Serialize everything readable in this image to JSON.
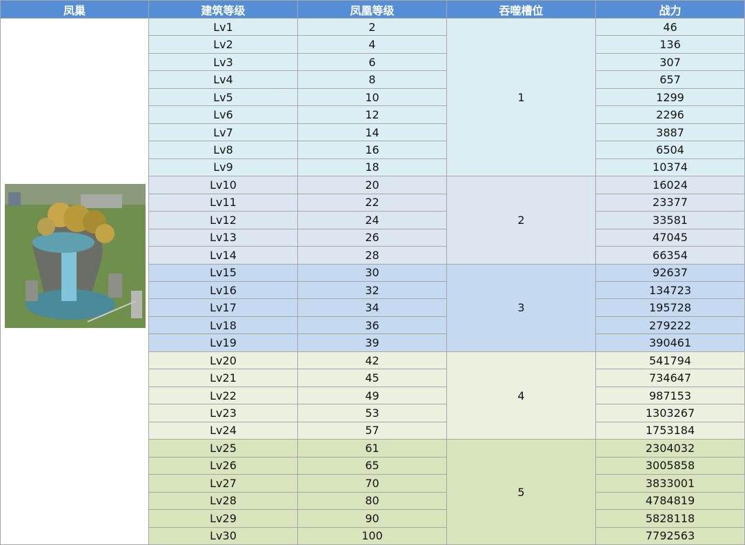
{
  "header": [
    "凤巢",
    "建筑等级",
    "凤凰等级",
    "吞噬槽位",
    "战力"
  ],
  "groups": [
    {
      "slot": 1,
      "color": "#daeef3",
      "rows": [
        {
          "level": "Lv1",
          "phoenix": 2,
          "power": 46
        },
        {
          "level": "Lv2",
          "phoenix": 4,
          "power": 136
        },
        {
          "level": "Lv3",
          "phoenix": 6,
          "power": 307
        },
        {
          "level": "Lv4",
          "phoenix": 8,
          "power": 657
        },
        {
          "level": "Lv5",
          "phoenix": 10,
          "power": 1299
        },
        {
          "level": "Lv6",
          "phoenix": 12,
          "power": 2296
        },
        {
          "level": "Lv7",
          "phoenix": 14,
          "power": 3887
        },
        {
          "level": "Lv8",
          "phoenix": 16,
          "power": 6504
        },
        {
          "level": "Lv9",
          "phoenix": 18,
          "power": 10374
        }
      ]
    },
    {
      "slot": 2,
      "color": "#dce6f1",
      "rows": [
        {
          "level": "Lv10",
          "phoenix": 20,
          "power": 16024
        },
        {
          "level": "Lv11",
          "phoenix": 22,
          "power": 23377
        },
        {
          "level": "Lv12",
          "phoenix": 24,
          "power": 33581
        },
        {
          "level": "Lv13",
          "phoenix": 26,
          "power": 47045
        },
        {
          "level": "Lv14",
          "phoenix": 28,
          "power": 66354
        }
      ]
    },
    {
      "slot": 3,
      "color": "#c5d9f1",
      "rows": [
        {
          "level": "Lv15",
          "phoenix": 30,
          "power": 92637
        },
        {
          "level": "Lv16",
          "phoenix": 32,
          "power": 134723
        },
        {
          "level": "Lv17",
          "phoenix": 34,
          "power": 195728
        },
        {
          "level": "Lv18",
          "phoenix": 36,
          "power": 279222
        },
        {
          "level": "Lv19",
          "phoenix": 39,
          "power": 390461
        }
      ]
    },
    {
      "slot": 4,
      "color": "#ebf1de",
      "rows": [
        {
          "level": "Lv20",
          "phoenix": 42,
          "power": 541794
        },
        {
          "level": "Lv21",
          "phoenix": 45,
          "power": 734647
        },
        {
          "level": "Lv22",
          "phoenix": 49,
          "power": 987153
        },
        {
          "level": "Lv23",
          "phoenix": 53,
          "power": 1303267
        },
        {
          "level": "Lv24",
          "phoenix": 57,
          "power": 1753184
        }
      ]
    },
    {
      "slot": 5,
      "color": "#d8e4bc",
      "rows": [
        {
          "level": "Lv25",
          "phoenix": 61,
          "power": 2304032
        },
        {
          "level": "Lv26",
          "phoenix": 65,
          "power": 3005858
        },
        {
          "level": "Lv27",
          "phoenix": 70,
          "power": 3833001
        },
        {
          "level": "Lv28",
          "phoenix": 80,
          "power": 4784819
        },
        {
          "level": "Lv29",
          "phoenix": 90,
          "power": 5828118
        },
        {
          "level": "Lv30",
          "phoenix": 100,
          "power": 7792563
        }
      ]
    }
  ]
}
